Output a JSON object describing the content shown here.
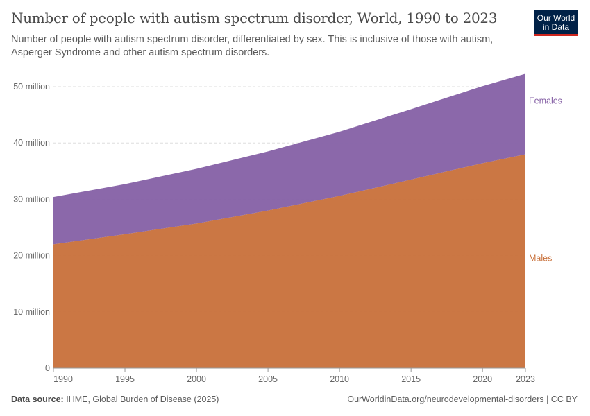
{
  "title": "Number of people with autism spectrum disorder, World, 1990 to 2023",
  "subtitle": "Number of people with autism spectrum disorder, differentiated by sex. This is inclusive of those with autism, Asperger Syndrome and other autism spectrum disorders.",
  "logo": {
    "line1": "Our World",
    "line2": "in Data"
  },
  "footer": {
    "source_label": "Data source:",
    "source": "IHME, Global Burden of Disease (2025)",
    "url": "OurWorldinData.org/neurodevelopmental-disorders | CC BY"
  },
  "chart_data": {
    "type": "area",
    "stacked": true,
    "x": [
      1990,
      1995,
      2000,
      2005,
      2010,
      2015,
      2020,
      2023
    ],
    "series": [
      {
        "name": "Males",
        "color": "#c8703a",
        "values": [
          22.0,
          23.8,
          25.7,
          28.0,
          30.6,
          33.5,
          36.4,
          38.0
        ]
      },
      {
        "name": "Females",
        "color": "#8560a5",
        "values": [
          8.4,
          8.9,
          9.7,
          10.5,
          11.4,
          12.5,
          13.7,
          14.3
        ]
      }
    ],
    "unit": "million",
    "ylim": [
      0,
      50
    ],
    "yticks": [
      0,
      10,
      20,
      30,
      40,
      50
    ],
    "ytick_labels": [
      "0",
      "10 million",
      "20 million",
      "30 million",
      "40 million",
      "50 million"
    ],
    "xticks": [
      1990,
      1995,
      2000,
      2005,
      2010,
      2015,
      2020,
      2023
    ],
    "grid": "horizontal dashed",
    "legend": "right, inline labels"
  }
}
